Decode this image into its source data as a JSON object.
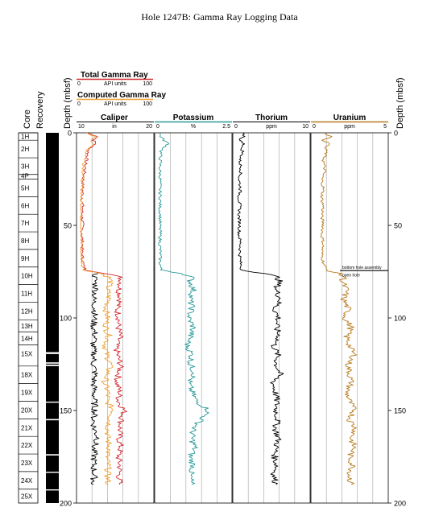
{
  "title": "Hole 1247B: Gamma Ray Logging Data",
  "colors": {
    "total_gamma": "#d4282e",
    "computed_gamma": "#f0a030",
    "caliper": "#000000",
    "potassium": "#2a9a9a",
    "thorium": "#000000",
    "uranium": "#b87a1e",
    "core_recovered": "#000000"
  },
  "legend": {
    "total": {
      "name": "Total Gamma Ray",
      "min": "0",
      "unit": "API units",
      "max": "100"
    },
    "computed": {
      "name": "Computed Gamma Ray",
      "min": "0",
      "unit": "API units",
      "max": "100"
    }
  },
  "chart_data": {
    "type": "line",
    "depth_axis": {
      "label": "Depth (mbsf)",
      "range": [
        0,
        200
      ],
      "ticks": [
        "0",
        "50",
        "100",
        "150",
        "200"
      ]
    },
    "core_column": {
      "label": "Core",
      "cores": [
        {
          "name": "1H",
          "top": 0,
          "bottom": 4
        },
        {
          "name": "2H",
          "top": 4,
          "bottom": 13.5
        },
        {
          "name": "3H",
          "top": 13.5,
          "bottom": 22.5
        },
        {
          "name": "4P",
          "top": 22.5,
          "bottom": 25
        },
        {
          "name": "5H",
          "top": 25,
          "bottom": 34.5
        },
        {
          "name": "6H",
          "top": 34.5,
          "bottom": 44
        },
        {
          "name": "7H",
          "top": 44,
          "bottom": 53.5
        },
        {
          "name": "8H",
          "top": 53.5,
          "bottom": 63
        },
        {
          "name": "9H",
          "top": 63,
          "bottom": 72.5
        },
        {
          "name": "10H",
          "top": 72.5,
          "bottom": 82
        },
        {
          "name": "11H",
          "top": 82,
          "bottom": 91.5
        },
        {
          "name": "12H",
          "top": 91.5,
          "bottom": 101
        },
        {
          "name": "13H",
          "top": 101,
          "bottom": 107.5
        },
        {
          "name": "14H",
          "top": 107.5,
          "bottom": 114.5
        },
        {
          "name": "15X",
          "top": 114.5,
          "bottom": 124
        },
        {
          "name": "18X",
          "top": 126,
          "bottom": 135.5
        },
        {
          "name": "19X",
          "top": 135.5,
          "bottom": 145
        },
        {
          "name": "20X",
          "top": 145,
          "bottom": 154.5
        },
        {
          "name": "21X",
          "top": 154.5,
          "bottom": 164
        },
        {
          "name": "22X",
          "top": 164,
          "bottom": 173.5
        },
        {
          "name": "23X",
          "top": 173.5,
          "bottom": 183
        },
        {
          "name": "24X",
          "top": 183,
          "bottom": 192.5
        },
        {
          "name": "25X",
          "top": 192.5,
          "bottom": 200
        }
      ]
    },
    "recovery_column": {
      "label": "Recovery",
      "gaps_mbsf": [
        [
          118.5,
          119.5
        ],
        [
          124,
          124.7
        ],
        [
          125.2,
          126
        ],
        [
          145.2,
          145.8
        ],
        [
          154.6,
          155.3
        ],
        [
          173.6,
          174.3
        ],
        [
          183.1,
          183.7
        ],
        [
          192.6,
          193.2
        ]
      ]
    },
    "annotations": [
      {
        "text": "bottom hole assembly",
        "depth": 74
      },
      {
        "text": "open hole",
        "depth": 78
      }
    ],
    "tracks": [
      {
        "name": "Caliper",
        "unit": "in",
        "scale": [
          "10",
          "20"
        ],
        "range": [
          10,
          20
        ],
        "series": [
          {
            "name": "Total Gamma Ray",
            "scale_min": 0,
            "scale_max": 100,
            "depth": [
              0,
              2,
              4,
              6,
              8,
              10,
              13,
              16,
              20,
              24,
              28,
              32,
              36,
              40,
              44,
              48,
              52,
              56,
              60,
              64,
              68,
              72,
              74,
              76,
              78,
              80,
              85,
              90,
              95,
              100,
              105,
              110,
              115,
              120,
              125,
              130,
              135,
              140,
              145,
              150,
              155,
              160,
              165,
              170,
              175,
              180,
              185,
              190
            ],
            "values": [
              13,
              28,
              22,
              25,
              18,
              15,
              14,
              12,
              11,
              9,
              8,
              8,
              7,
              8,
              7,
              8,
              7,
              7,
              8,
              7,
              8,
              9,
              12,
              40,
              56,
              58,
              55,
              57,
              52,
              55,
              54,
              56,
              51,
              53,
              57,
              55,
              52,
              56,
              54,
              62,
              58,
              56,
              55,
              57,
              54,
              56,
              55,
              56
            ]
          },
          {
            "name": "Computed Gamma Ray",
            "scale_min": 0,
            "scale_max": 100,
            "depth": [
              0,
              2,
              4,
              6,
              8,
              10,
              13,
              16,
              20,
              24,
              28,
              32,
              36,
              40,
              44,
              48,
              52,
              56,
              60,
              64,
              68,
              72,
              74,
              76,
              78,
              80,
              85,
              90,
              95,
              100,
              105,
              110,
              115,
              120,
              125,
              130,
              135,
              140,
              145,
              150,
              155,
              160,
              165,
              170,
              175,
              180,
              185,
              190
            ],
            "values": [
              12,
              24,
              20,
              22,
              16,
              13,
              12,
              10,
              9,
              8,
              7,
              7,
              6,
              7,
              6,
              7,
              6,
              6,
              7,
              6,
              7,
              8,
              10,
              32,
              42,
              44,
              40,
              42,
              38,
              40,
              38,
              42,
              37,
              39,
              44,
              40,
              36,
              41,
              39,
              48,
              43,
              41,
              40,
              43,
              39,
              41,
              40,
              41
            ]
          },
          {
            "name": "Caliper",
            "depth": [
              76,
              78,
              80,
              85,
              90,
              95,
              100,
              105,
              110,
              115,
              120,
              125,
              130,
              135,
              140,
              145,
              150,
              155,
              160,
              165,
              170,
              175,
              180,
              185,
              190
            ],
            "values": [
              12.5,
              12.3,
              12.4,
              12.5,
              12.2,
              12.4,
              12.3,
              12.2,
              12.4,
              12.1,
              12.3,
              12.2,
              12.4,
              12.2,
              12.3,
              12.3,
              12.4,
              12.2,
              12.3,
              12.8,
              12.2,
              12.3,
              12.2,
              12.3,
              12.2
            ]
          }
        ]
      },
      {
        "name": "Potassium",
        "unit": "%",
        "scale": [
          "0",
          "2.5"
        ],
        "range": [
          0,
          2.5
        ],
        "series": [
          {
            "name": "Potassium",
            "depth": [
              0,
              2,
              4,
              6,
              8,
              10,
              15,
              20,
              25,
              30,
              35,
              40,
              45,
              50,
              55,
              60,
              65,
              70,
              74,
              76,
              78,
              80,
              85,
              90,
              95,
              100,
              105,
              110,
              115,
              120,
              125,
              130,
              135,
              140,
              145,
              150,
              155,
              160,
              165,
              170,
              175,
              180,
              185,
              190
            ],
            "values": [
              0.15,
              0.2,
              0.3,
              0.45,
              0.3,
              0.2,
              0.18,
              0.17,
              0.18,
              0.17,
              0.18,
              0.17,
              0.18,
              0.17,
              0.18,
              0.17,
              0.18,
              0.17,
              0.2,
              0.9,
              1.2,
              1.15,
              1.25,
              1.15,
              1.2,
              1.1,
              1.25,
              1.15,
              1.05,
              1.2,
              1.15,
              1.3,
              1.1,
              1.2,
              1.35,
              1.75,
              1.5,
              1.25,
              1.2,
              1.3,
              1.15,
              1.25,
              1.15,
              1.2
            ]
          }
        ]
      },
      {
        "name": "Thorium",
        "unit": "ppm",
        "scale": [
          "0",
          "10"
        ],
        "range": [
          0,
          10
        ],
        "series": [
          {
            "name": "Thorium",
            "depth": [
              0,
              2,
              4,
              6,
              8,
              10,
              15,
              20,
              25,
              30,
              35,
              40,
              45,
              50,
              55,
              60,
              65,
              70,
              74,
              76,
              78,
              80,
              85,
              90,
              95,
              100,
              105,
              110,
              115,
              120,
              125,
              130,
              135,
              140,
              145,
              150,
              155,
              160,
              165,
              170,
              175,
              180,
              185,
              190
            ],
            "values": [
              1.2,
              1.5,
              0.8,
              1.6,
              1.0,
              1.3,
              0.9,
              1.1,
              0.8,
              1.0,
              0.8,
              0.9,
              0.8,
              0.9,
              0.8,
              1.0,
              0.9,
              1.0,
              1.1,
              4.2,
              5.8,
              6.0,
              5.6,
              6.2,
              5.4,
              5.9,
              5.6,
              6.0,
              5.3,
              5.8,
              5.6,
              6.1,
              5.2,
              5.5,
              5.7,
              5.6,
              5.8,
              5.5,
              5.9,
              5.6,
              5.4,
              5.7,
              5.3,
              5.6
            ]
          }
        ]
      },
      {
        "name": "Uranium",
        "unit": "ppm",
        "scale": [
          "0",
          "5"
        ],
        "range": [
          0,
          5
        ],
        "series": [
          {
            "name": "Uranium",
            "depth": [
              0,
              2,
              4,
              6,
              8,
              10,
              15,
              20,
              25,
              30,
              35,
              40,
              45,
              50,
              55,
              60,
              65,
              70,
              74,
              76,
              78,
              80,
              85,
              90,
              95,
              100,
              105,
              110,
              115,
              120,
              125,
              130,
              135,
              140,
              145,
              150,
              155,
              160,
              165,
              170,
              175,
              180,
              185,
              190
            ],
            "values": [
              0.9,
              1.3,
              0.8,
              1.2,
              0.9,
              1.0,
              0.8,
              0.9,
              0.7,
              0.8,
              0.7,
              0.8,
              0.7,
              0.8,
              0.7,
              0.8,
              0.7,
              0.8,
              1.0,
              1.8,
              2.2,
              2.0,
              2.3,
              2.1,
              2.4,
              2.2,
              2.6,
              2.3,
              2.5,
              2.8,
              2.4,
              2.5,
              2.6,
              2.3,
              2.5,
              2.8,
              2.5,
              2.9,
              2.6,
              2.8,
              2.5,
              2.7,
              2.5,
              2.6
            ]
          }
        ]
      }
    ]
  }
}
